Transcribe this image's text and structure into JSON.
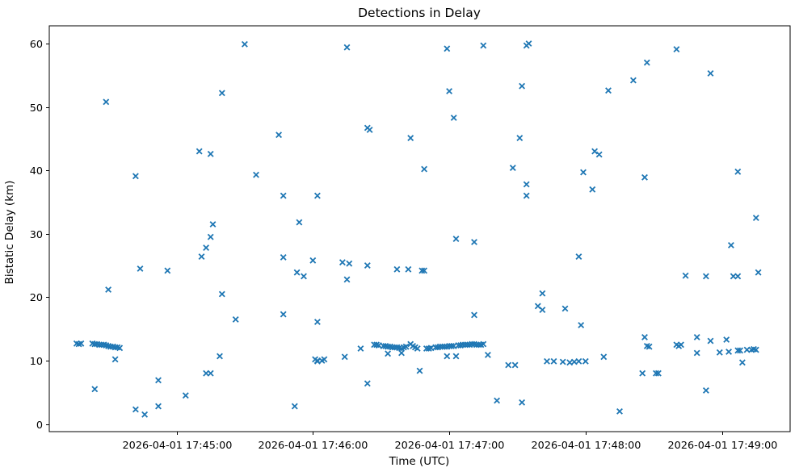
{
  "figure": {
    "background": "#ffffff",
    "title": "Detections in Delay"
  },
  "chart_data": {
    "type": "scatter",
    "title": "Detections in Delay",
    "xlabel": "Time (UTC)",
    "ylabel": "Bistatic Delay (km)",
    "legend": "none",
    "grid": false,
    "marker": "x",
    "marker_color": "#1f77b4",
    "date": "2026-04-01",
    "x_axis": {
      "start": "17:44:04",
      "end": "17:49:30",
      "ticks": [
        "17:45:00",
        "17:46:00",
        "17:47:00",
        "17:48:00",
        "17:49:00"
      ],
      "tick_label_prefix": "2026-04-01 "
    },
    "y_axis": {
      "min": -1.2,
      "max": 62.8,
      "ticks": [
        0,
        10,
        20,
        30,
        40,
        50,
        60
      ]
    },
    "points": [
      [
        "17:44:16",
        12.7
      ],
      [
        "17:44:17",
        12.6
      ],
      [
        "17:44:18",
        12.7
      ],
      [
        "17:44:23",
        12.7
      ],
      [
        "17:44:24",
        12.6
      ],
      [
        "17:44:24",
        5.5
      ],
      [
        "17:44:25",
        12.6
      ],
      [
        "17:44:26",
        12.5
      ],
      [
        "17:44:27",
        12.5
      ],
      [
        "17:44:28",
        12.5
      ],
      [
        "17:44:29",
        12.4
      ],
      [
        "17:44:29",
        50.8
      ],
      [
        "17:44:30",
        12.3
      ],
      [
        "17:44:30",
        21.2
      ],
      [
        "17:44:31",
        12.2
      ],
      [
        "17:44:32",
        12.2
      ],
      [
        "17:44:33",
        12.1
      ],
      [
        "17:44:33",
        10.2
      ],
      [
        "17:44:34",
        12.1
      ],
      [
        "17:44:35",
        12.0
      ],
      [
        "17:44:42",
        39.1
      ],
      [
        "17:44:42",
        2.3
      ],
      [
        "17:44:44",
        24.5
      ],
      [
        "17:44:46",
        1.5
      ],
      [
        "17:44:52",
        6.9
      ],
      [
        "17:44:52",
        2.8
      ],
      [
        "17:44:56",
        24.2
      ],
      [
        "17:45:04",
        4.5
      ],
      [
        "17:45:10",
        43.0
      ],
      [
        "17:45:11",
        26.4
      ],
      [
        "17:45:13",
        27.8
      ],
      [
        "17:45:13",
        8.0
      ],
      [
        "17:45:15",
        8.0
      ],
      [
        "17:45:15",
        29.5
      ],
      [
        "17:45:15",
        42.6
      ],
      [
        "17:45:16",
        31.5
      ],
      [
        "17:45:19",
        10.7
      ],
      [
        "17:45:20",
        52.2
      ],
      [
        "17:45:20",
        20.5
      ],
      [
        "17:45:26",
        16.5
      ],
      [
        "17:45:30",
        59.9
      ],
      [
        "17:45:35",
        39.3
      ],
      [
        "17:45:45",
        45.6
      ],
      [
        "17:45:47",
        26.3
      ],
      [
        "17:45:47",
        36.0
      ],
      [
        "17:45:47",
        17.3
      ],
      [
        "17:45:52",
        2.8
      ],
      [
        "17:45:53",
        23.9
      ],
      [
        "17:45:54",
        31.8
      ],
      [
        "17:45:56",
        23.3
      ],
      [
        "17:46:00",
        25.8
      ],
      [
        "17:46:01",
        10.2
      ],
      [
        "17:46:02",
        10.0
      ],
      [
        "17:46:02",
        9.9
      ],
      [
        "17:46:02",
        36.0
      ],
      [
        "17:46:02",
        16.1
      ],
      [
        "17:46:04",
        10.0
      ],
      [
        "17:46:05",
        10.2
      ],
      [
        "17:46:13",
        25.5
      ],
      [
        "17:46:14",
        10.6
      ],
      [
        "17:46:15",
        59.4
      ],
      [
        "17:46:15",
        22.8
      ],
      [
        "17:46:16",
        25.3
      ],
      [
        "17:46:21",
        11.9
      ],
      [
        "17:46:24",
        25.0
      ],
      [
        "17:46:24",
        46.7
      ],
      [
        "17:46:24",
        6.4
      ],
      [
        "17:46:25",
        46.4
      ],
      [
        "17:46:27",
        12.5
      ],
      [
        "17:46:28",
        12.5
      ],
      [
        "17:46:29",
        12.4
      ],
      [
        "17:46:31",
        12.3
      ],
      [
        "17:46:32",
        12.3
      ],
      [
        "17:46:33",
        12.2
      ],
      [
        "17:46:33",
        11.1
      ],
      [
        "17:46:34",
        12.2
      ],
      [
        "17:46:35",
        12.1
      ],
      [
        "17:46:36",
        12.1
      ],
      [
        "17:46:37",
        12.1
      ],
      [
        "17:46:37",
        24.4
      ],
      [
        "17:46:38",
        12.0
      ],
      [
        "17:46:39",
        11.9
      ],
      [
        "17:46:39",
        11.2
      ],
      [
        "17:46:40",
        12.1
      ],
      [
        "17:46:41",
        12.2
      ],
      [
        "17:46:42",
        24.4
      ],
      [
        "17:46:43",
        12.6
      ],
      [
        "17:46:43",
        45.1
      ],
      [
        "17:46:44",
        12.3
      ],
      [
        "17:46:45",
        12.1
      ],
      [
        "17:46:46",
        11.9
      ],
      [
        "17:46:47",
        8.4
      ],
      [
        "17:46:48",
        24.2
      ],
      [
        "17:46:49",
        24.2
      ],
      [
        "17:46:49",
        40.2
      ],
      [
        "17:46:50",
        11.9
      ],
      [
        "17:46:51",
        11.9
      ],
      [
        "17:46:52",
        12.0
      ],
      [
        "17:46:54",
        12.1
      ],
      [
        "17:46:55",
        12.1
      ],
      [
        "17:46:56",
        12.2
      ],
      [
        "17:46:57",
        12.2
      ],
      [
        "17:46:58",
        12.2
      ],
      [
        "17:46:59",
        12.2
      ],
      [
        "17:46:59",
        10.7
      ],
      [
        "17:46:59",
        59.2
      ],
      [
        "17:47:00",
        12.3
      ],
      [
        "17:47:00",
        52.5
      ],
      [
        "17:47:01",
        12.3
      ],
      [
        "17:47:02",
        12.3
      ],
      [
        "17:47:02",
        48.3
      ],
      [
        "17:47:03",
        29.2
      ],
      [
        "17:47:03",
        10.7
      ],
      [
        "17:47:04",
        12.4
      ],
      [
        "17:47:05",
        12.4
      ],
      [
        "17:47:06",
        12.5
      ],
      [
        "17:47:07",
        12.5
      ],
      [
        "17:47:08",
        12.5
      ],
      [
        "17:47:09",
        12.5
      ],
      [
        "17:47:10",
        12.6
      ],
      [
        "17:47:11",
        12.6
      ],
      [
        "17:47:11",
        28.7
      ],
      [
        "17:47:11",
        17.2
      ],
      [
        "17:47:12",
        12.5
      ],
      [
        "17:47:13",
        12.5
      ],
      [
        "17:47:14",
        12.5
      ],
      [
        "17:47:15",
        12.6
      ],
      [
        "17:47:15",
        59.7
      ],
      [
        "17:47:17",
        10.9
      ],
      [
        "17:47:21",
        3.7
      ],
      [
        "17:47:26",
        9.3
      ],
      [
        "17:47:28",
        40.4
      ],
      [
        "17:47:29",
        9.3
      ],
      [
        "17:47:31",
        45.1
      ],
      [
        "17:47:32",
        53.3
      ],
      [
        "17:47:32",
        3.4
      ],
      [
        "17:47:34",
        37.8
      ],
      [
        "17:47:34",
        36.0
      ],
      [
        "17:47:34",
        59.7
      ],
      [
        "17:47:35",
        60.0
      ],
      [
        "17:47:39",
        18.6
      ],
      [
        "17:47:41",
        20.6
      ],
      [
        "17:47:41",
        18.0
      ],
      [
        "17:47:43",
        9.9
      ],
      [
        "17:47:46",
        9.9
      ],
      [
        "17:47:50",
        9.8
      ],
      [
        "17:47:51",
        18.2
      ],
      [
        "17:47:53",
        9.7
      ],
      [
        "17:47:55",
        9.8
      ],
      [
        "17:47:57",
        9.9
      ],
      [
        "17:47:57",
        26.4
      ],
      [
        "17:47:58",
        15.6
      ],
      [
        "17:47:59",
        39.7
      ],
      [
        "17:48:00",
        9.9
      ],
      [
        "17:48:03",
        37.0
      ],
      [
        "17:48:04",
        43.0
      ],
      [
        "17:48:06",
        42.5
      ],
      [
        "17:48:08",
        10.6
      ],
      [
        "17:48:10",
        52.6
      ],
      [
        "17:48:15",
        2.0
      ],
      [
        "17:48:21",
        54.2
      ],
      [
        "17:48:25",
        8.0
      ],
      [
        "17:48:26",
        38.9
      ],
      [
        "17:48:26",
        13.7
      ],
      [
        "17:48:27",
        12.3
      ],
      [
        "17:48:27",
        57.0
      ],
      [
        "17:48:28",
        12.2
      ],
      [
        "17:48:31",
        8.0
      ],
      [
        "17:48:32",
        8.0
      ],
      [
        "17:48:40",
        59.1
      ],
      [
        "17:48:40",
        12.5
      ],
      [
        "17:48:41",
        12.3
      ],
      [
        "17:48:42",
        12.5
      ],
      [
        "17:48:44",
        23.4
      ],
      [
        "17:48:49",
        13.7
      ],
      [
        "17:48:49",
        11.2
      ],
      [
        "17:48:53",
        5.3
      ],
      [
        "17:48:53",
        23.3
      ],
      [
        "17:48:55",
        13.1
      ],
      [
        "17:48:55",
        55.3
      ],
      [
        "17:48:59",
        11.3
      ],
      [
        "17:49:02",
        13.3
      ],
      [
        "17:49:03",
        11.4
      ],
      [
        "17:49:04",
        28.2
      ],
      [
        "17:49:05",
        23.3
      ],
      [
        "17:49:07",
        39.8
      ],
      [
        "17:49:07",
        11.6
      ],
      [
        "17:49:07",
        23.3
      ],
      [
        "17:49:08",
        11.6
      ],
      [
        "17:49:09",
        9.7
      ],
      [
        "17:49:11",
        11.7
      ],
      [
        "17:49:13",
        11.7
      ],
      [
        "17:49:14",
        11.8
      ],
      [
        "17:49:15",
        11.7
      ],
      [
        "17:49:15",
        32.5
      ],
      [
        "17:49:16",
        23.9
      ]
    ]
  }
}
